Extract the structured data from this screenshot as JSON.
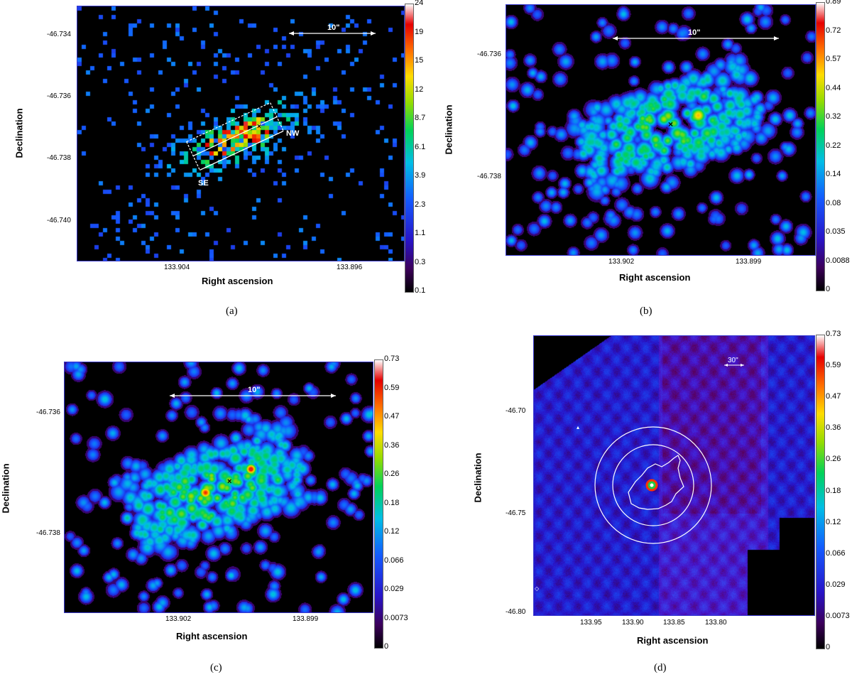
{
  "panels": [
    {
      "id": "a",
      "caption": "(a)",
      "xlabel": "Right ascension",
      "ylabel": "Declination",
      "xticks": [
        "133.904",
        "133.896"
      ],
      "yticks": [
        "-46.734",
        "-46.736",
        "-46.738",
        "-46.740"
      ],
      "colorbar": [
        "24",
        "19",
        "15",
        "12",
        "8.7",
        "6.1",
        "3.9",
        "2.3",
        "1.1",
        "0.3",
        "0.1"
      ],
      "scale_label": "10\"",
      "labels": [
        "NW",
        "SE"
      ]
    },
    {
      "id": "b",
      "caption": "(b)",
      "xlabel": "Right ascension",
      "ylabel": "Declination",
      "xticks": [
        "133.902",
        "133.899"
      ],
      "yticks": [
        "-46.736",
        "-46.738"
      ],
      "colorbar": [
        "0.89",
        "0.72",
        "0.57",
        "0.44",
        "0.32",
        "0.22",
        "0.14",
        "0.08",
        "0.035",
        "0.0088",
        "0"
      ],
      "scale_label": "10\""
    },
    {
      "id": "c",
      "caption": "(c)",
      "xlabel": "Right ascension",
      "ylabel": "Declination",
      "xticks": [
        "133.902",
        "133.899"
      ],
      "yticks": [
        "-46.736",
        "-46.738"
      ],
      "colorbar": [
        "0.73",
        "0.59",
        "0.47",
        "0.36",
        "0.26",
        "0.18",
        "0.12",
        "0.066",
        "0.029",
        "0.0073",
        "0"
      ],
      "scale_label": "10\""
    },
    {
      "id": "d",
      "caption": "(d)",
      "xlabel": "Right ascension",
      "ylabel": "Declination",
      "xticks": [
        "133.95",
        "133.90",
        "133.85",
        "133.80"
      ],
      "yticks": [
        "-46.70",
        "-46.75",
        "-46.80"
      ],
      "colorbar": [
        "0.73",
        "0.59",
        "0.47",
        "0.36",
        "0.26",
        "0.18",
        "0.12",
        "0.066",
        "0.029",
        "0.0073",
        "0"
      ],
      "scale_label": "30\""
    }
  ]
}
